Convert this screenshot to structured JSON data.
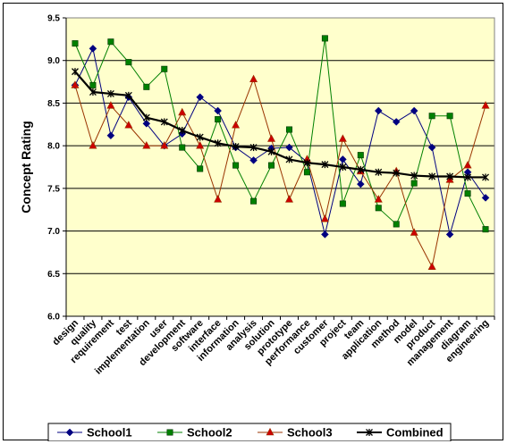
{
  "chart_data": {
    "type": "line",
    "title": "",
    "xlabel": "",
    "ylabel": "Concept Rating",
    "ylim": [
      6.0,
      9.5
    ],
    "y_ticks": [
      "6.0",
      "6.5",
      "7.0",
      "7.5",
      "8.0",
      "8.5",
      "9.0",
      "9.5"
    ],
    "grid": "horizontal",
    "legend_position": "bottom",
    "plot_background": "#ffffcc",
    "categories": [
      "design",
      "quality",
      "requirement",
      "test",
      "implementation",
      "user",
      "development",
      "software",
      "interface",
      "information",
      "analysis",
      "solution",
      "prototype",
      "performance",
      "customer",
      "project",
      "team",
      "application",
      "method",
      "model",
      "product",
      "management",
      "diagram",
      "engineering"
    ],
    "series": [
      {
        "name": "School1",
        "color": "#000080",
        "marker": "diamond",
        "values": [
          8.71,
          9.14,
          8.12,
          8.57,
          8.26,
          8.0,
          8.14,
          8.57,
          8.41,
          7.98,
          7.83,
          7.97,
          7.98,
          7.81,
          6.96,
          7.84,
          7.55,
          8.41,
          8.28,
          8.41,
          7.98,
          6.96,
          7.69,
          7.39
        ]
      },
      {
        "name": "School2",
        "color": "#008000",
        "marker": "square",
        "values": [
          9.2,
          8.71,
          9.22,
          8.98,
          8.69,
          8.9,
          7.98,
          7.73,
          8.31,
          7.77,
          7.35,
          7.77,
          8.19,
          7.69,
          9.26,
          7.32,
          7.89,
          7.27,
          7.08,
          7.56,
          8.35,
          8.35,
          7.44,
          7.02
        ]
      },
      {
        "name": "School3",
        "color": "#993300",
        "marker": "triangle",
        "values": [
          8.71,
          8.0,
          8.47,
          8.24,
          8.0,
          8.0,
          8.39,
          8.0,
          7.37,
          8.24,
          8.78,
          8.08,
          7.37,
          7.84,
          7.14,
          8.08,
          7.7,
          7.37,
          7.7,
          6.98,
          6.58,
          7.6,
          7.77,
          8.47
        ]
      },
      {
        "name": "Combined",
        "color": "#000000",
        "marker": "star",
        "values": [
          8.87,
          8.63,
          8.61,
          8.59,
          8.33,
          8.28,
          8.18,
          8.1,
          8.03,
          7.99,
          7.98,
          7.93,
          7.84,
          7.8,
          7.78,
          7.75,
          7.72,
          7.69,
          7.68,
          7.65,
          7.64,
          7.64,
          7.63,
          7.63
        ]
      }
    ]
  }
}
